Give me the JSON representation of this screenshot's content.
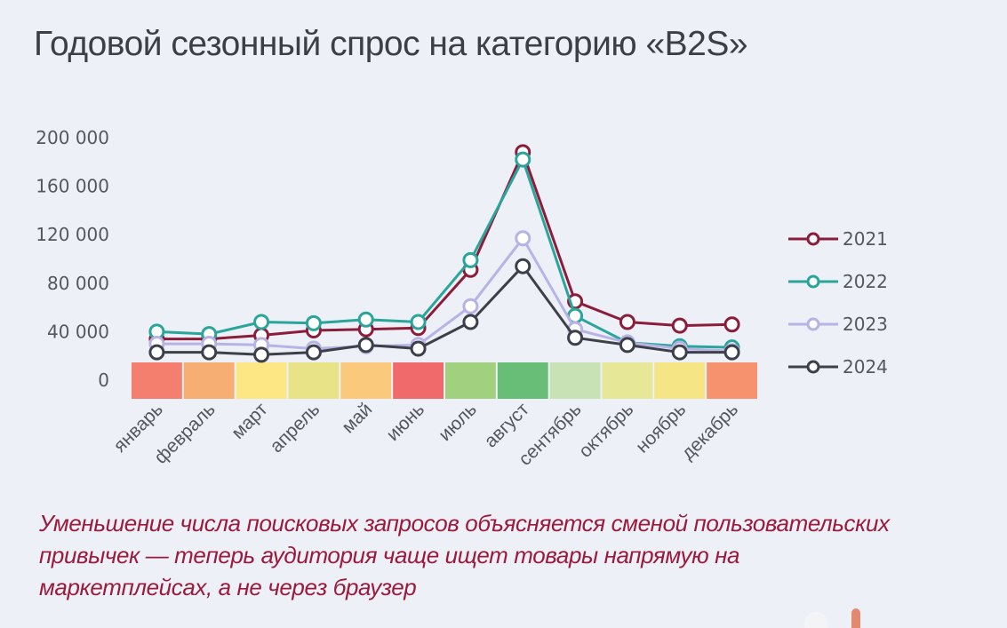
{
  "page": {
    "title": "Годовой сезонный спрос на категорию «B2S»",
    "note": "Уменьшение числа поисковых запросов объясняется сменой пользовательских привычек — теперь аудитория чаще ищет товары напрямую на маркетплейсах, а не через браузер"
  },
  "chart_data": {
    "type": "line",
    "title": "Годовой сезонный спрос на категорию «B2S»",
    "xlabel": "",
    "ylabel": "",
    "ylim": [
      0,
      200000
    ],
    "yticks": [
      "0",
      "40 000",
      "80 000",
      "120 000",
      "160 000",
      "200 000"
    ],
    "ytick_values": [
      0,
      40000,
      80000,
      120000,
      160000,
      200000
    ],
    "grid": false,
    "legend_position": "right",
    "categories": [
      "январь",
      "февраль",
      "март",
      "апрель",
      "май",
      "июнь",
      "июль",
      "август",
      "сентябрь",
      "октябрь",
      "ноябрь",
      "декабрь"
    ],
    "series": [
      {
        "name": "2021",
        "color": "#8c1d3a",
        "values": [
          34000,
          34000,
          37000,
          41000,
          42000,
          43000,
          91000,
          188000,
          65000,
          48000,
          45000,
          46000
        ]
      },
      {
        "name": "2022",
        "color": "#2aa59b",
        "values": [
          40000,
          38000,
          48000,
          47000,
          50000,
          48000,
          99000,
          182000,
          53000,
          31000,
          28000,
          27000
        ]
      },
      {
        "name": "2023",
        "color": "#b7b3e6",
        "values": [
          30000,
          30000,
          29000,
          26000,
          28000,
          29000,
          61000,
          117000,
          42000,
          31000,
          26000,
          24000
        ]
      },
      {
        "name": "2024",
        "color": "#3e4049",
        "values": [
          23000,
          23000,
          21000,
          23000,
          29000,
          26000,
          48000,
          94000,
          35000,
          29000,
          23000,
          23000
        ]
      }
    ],
    "heat_strip": {
      "description": "Цветовая шкала сезонности по месяцам",
      "colors": [
        "#f47f6e",
        "#f7ae72",
        "#fde784",
        "#e8e387",
        "#fbc97b",
        "#f06a6b",
        "#a1d07e",
        "#68bd77",
        "#c8e2b5",
        "#e6e797",
        "#f6e584",
        "#f6936e"
      ]
    }
  }
}
